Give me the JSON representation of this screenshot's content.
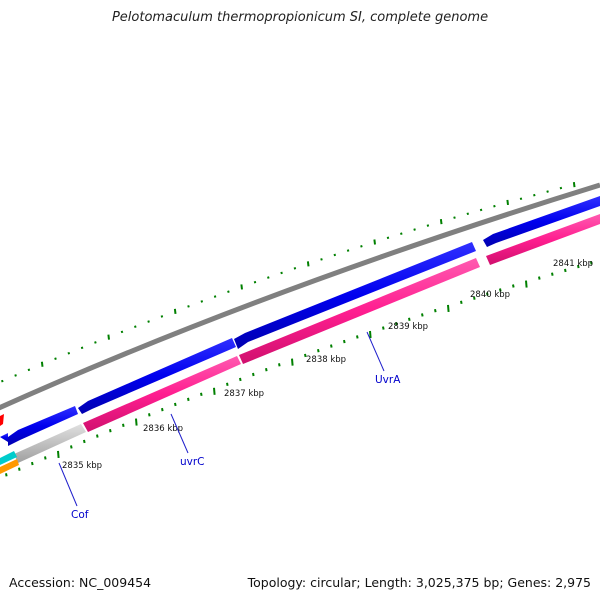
{
  "title": "Pelotomaculum thermopropionicum SI, complete genome",
  "footer": {
    "accession": "Accession: NC_009454",
    "summary": "Topology: circular; Length: 3,025,375 bp; Genes: 2,975"
  },
  "scale_labels": [
    "2835 kbp",
    "2836 kbp",
    "2837 kbp",
    "2838 kbp",
    "2839 kbp",
    "2840 kbp",
    "2841 kbp"
  ],
  "gene_labels": [
    {
      "name": "Cof",
      "color": "#0000cc"
    },
    {
      "name": "uvrC",
      "color": "#0000cc"
    },
    {
      "name": "UvrA",
      "color": "#0000cc"
    }
  ],
  "colors": {
    "backbone": "#808080",
    "cds_forward": "#0000ee",
    "cds_reverse": "#ff1e90",
    "cds_other": "#c0c0c0",
    "ticks": "#008000",
    "accent_red": "#ff0000",
    "accent_cyan": "#00cccc",
    "accent_orange": "#ff9900"
  }
}
